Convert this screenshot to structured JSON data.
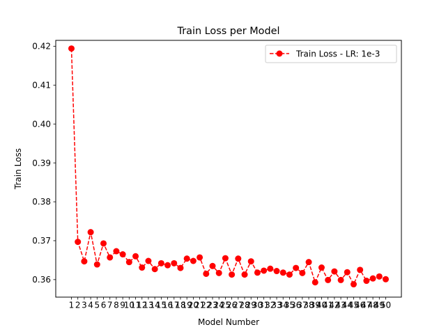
{
  "chart_data": {
    "type": "line",
    "title": "Train Loss per Model",
    "xlabel": "Model Number",
    "ylabel": "Train Loss",
    "x": [
      1,
      2,
      3,
      4,
      5,
      6,
      7,
      8,
      9,
      10,
      11,
      12,
      13,
      14,
      15,
      16,
      17,
      18,
      19,
      20,
      21,
      22,
      23,
      24,
      25,
      26,
      27,
      28,
      29,
      30,
      31,
      32,
      33,
      34,
      35,
      36,
      37,
      38,
      39,
      40,
      41,
      42,
      43,
      44,
      45,
      46,
      47,
      48,
      49,
      50
    ],
    "xticks": [
      "1",
      "2",
      "3",
      "4",
      "5",
      "6",
      "7",
      "8",
      "9",
      "10",
      "11",
      "12",
      "13",
      "14",
      "15",
      "16",
      "17",
      "18",
      "19",
      "20",
      "21",
      "22",
      "23",
      "24",
      "25",
      "26",
      "27",
      "28",
      "29",
      "30",
      "31",
      "32",
      "33",
      "34",
      "35",
      "36",
      "37",
      "38",
      "39",
      "40",
      "41",
      "42",
      "43",
      "44",
      "45",
      "46",
      "47",
      "48",
      "49",
      "50"
    ],
    "yticks": [
      "0.36",
      "0.37",
      "0.38",
      "0.39",
      "0.40",
      "0.41",
      "0.42"
    ],
    "ylim": [
      0.3555,
      0.4215
    ],
    "grid": false,
    "legend_position": "upper right",
    "series": [
      {
        "name": "Train Loss - LR: 1e-3",
        "color": "#ff0000",
        "linestyle": "dashed",
        "marker": "circle",
        "values": [
          0.4194,
          0.3697,
          0.3647,
          0.3722,
          0.3639,
          0.3693,
          0.3657,
          0.3673,
          0.3665,
          0.3645,
          0.366,
          0.3631,
          0.3648,
          0.3627,
          0.3642,
          0.3637,
          0.3642,
          0.363,
          0.3654,
          0.3648,
          0.3657,
          0.3615,
          0.3635,
          0.3617,
          0.3655,
          0.3613,
          0.3654,
          0.3613,
          0.3647,
          0.3618,
          0.3623,
          0.3628,
          0.3622,
          0.3618,
          0.3613,
          0.363,
          0.3617,
          0.3645,
          0.3593,
          0.3631,
          0.3599,
          0.3621,
          0.3599,
          0.3619,
          0.3588,
          0.3625,
          0.3597,
          0.3603,
          0.3608,
          0.3601
        ]
      }
    ]
  }
}
